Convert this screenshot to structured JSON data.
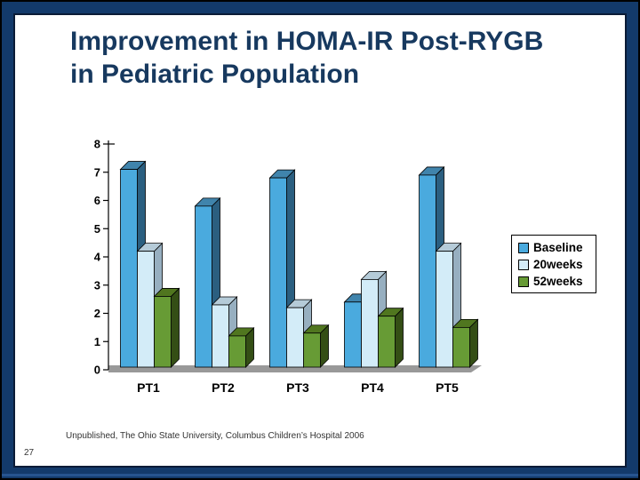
{
  "page": {
    "page_number": "27"
  },
  "slide": {
    "title_line1": "Improvement in HOMA-IR Post-RYGB",
    "title_line2": "in Pediatric Population",
    "caption": "Unpublished, The Ohio State University, Columbus Children’s Hospital 2006"
  },
  "colors": {
    "frame_navy": "#133A6B",
    "bottom_accent": "#27548F",
    "title_blue": "#17395F",
    "floor_gray": "#999999",
    "axis_black": "#000000"
  },
  "chart_data": {
    "type": "bar",
    "style": "3d-clustered",
    "title": "",
    "xlabel": "",
    "ylabel": "",
    "categories": [
      "PT1",
      "PT2",
      "PT3",
      "PT4",
      "PT5"
    ],
    "series": [
      {
        "name": "Baseline",
        "values": [
          7.1,
          5.8,
          6.8,
          2.4,
          6.9
        ],
        "color_front": "#4AAADE",
        "color_top": "#4084AC",
        "color_side": "#2B5F80"
      },
      {
        "name": "20weeks",
        "values": [
          4.2,
          2.3,
          2.2,
          3.2,
          4.2
        ],
        "color_front": "#D3ECF8",
        "color_top": "#B5CBD8",
        "color_side": "#97AFC0"
      },
      {
        "name": "52weeks",
        "values": [
          2.6,
          1.2,
          1.3,
          1.9,
          1.5
        ],
        "color_front": "#679B35",
        "color_top": "#50761F",
        "color_side": "#344E15"
      }
    ],
    "ylim": [
      0,
      8
    ],
    "ytick_step": 1,
    "yticks": [
      "0",
      "1",
      "2",
      "3",
      "4",
      "5",
      "6",
      "7",
      "8"
    ],
    "grid": false,
    "legend_position": "right"
  }
}
